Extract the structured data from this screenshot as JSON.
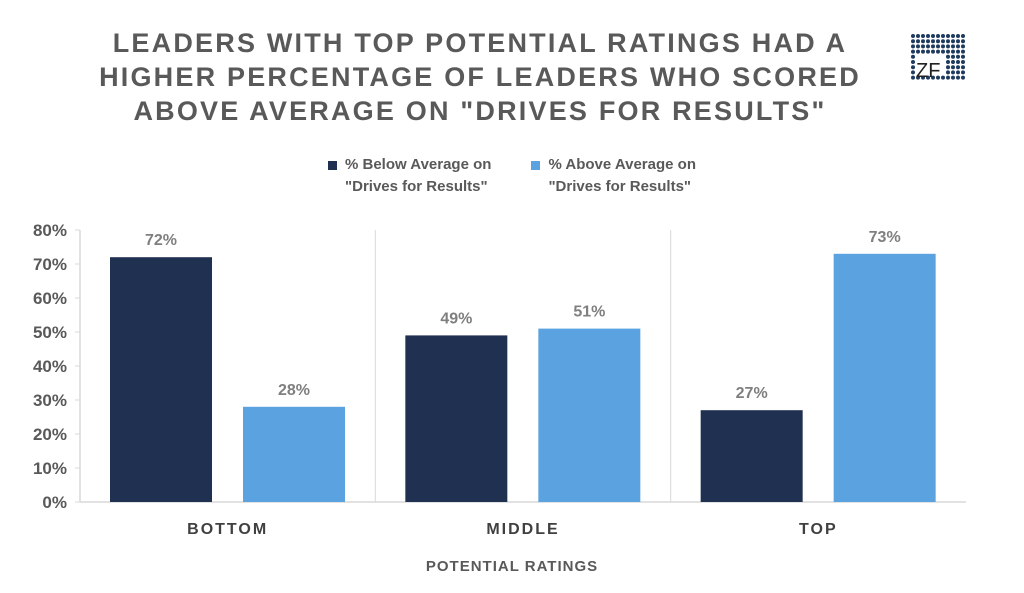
{
  "chart_data": {
    "type": "bar",
    "title_lines": [
      "LEADERS WITH TOP POTENTIAL RATINGS HAD A",
      "HIGHER PERCENTAGE OF LEADERS WHO SCORED",
      "ABOVE AVERAGE ON \"DRIVES FOR RESULTS\""
    ],
    "categories": [
      "BOTTOM",
      "MIDDLE",
      "TOP"
    ],
    "series": [
      {
        "name_lines": [
          "% Below Average on",
          "\"Drives for Results\""
        ],
        "color": "#203050",
        "values": [
          72,
          49,
          27
        ]
      },
      {
        "name_lines": [
          "% Above Average on",
          "\"Drives for Results\""
        ],
        "color": "#5ba3e0",
        "values": [
          28,
          51,
          73
        ]
      }
    ],
    "data_labels": [
      [
        "72%",
        "49%",
        "27%"
      ],
      [
        "28%",
        "51%",
        "73%"
      ]
    ],
    "yticks": [
      "0%",
      "10%",
      "20%",
      "30%",
      "40%",
      "50%",
      "60%",
      "70%",
      "80%"
    ],
    "ylim": [
      0,
      80
    ],
    "xlabel": "POTENTIAL RATINGS",
    "ylabel": "",
    "legend_position": "top",
    "grid": false
  },
  "logo": {
    "text": "ZF",
    "color": "#1f3a5f"
  }
}
